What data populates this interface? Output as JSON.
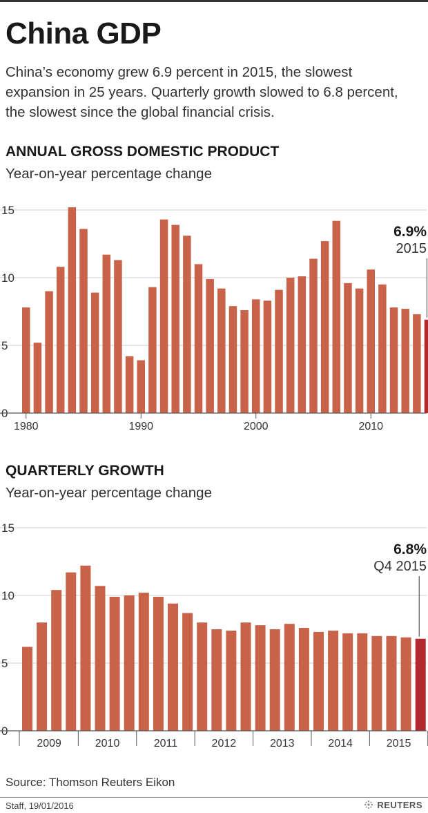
{
  "title": "China GDP",
  "intro": "China’s economy grew 6.9 percent in 2015, the slowest expansion in 25 years. Quarterly growth slowed to 6.8 percent, the slowest since the global  financial crisis.",
  "source": "Source: Thomson Reuters Eikon",
  "credit": "Staff, 19/01/2016",
  "brand": "REUTERS",
  "colors": {
    "bar": "#c8634a",
    "highlight": "#b22a2f",
    "grid": "#cfcfcf",
    "axis": "#555555"
  },
  "chart_data": [
    {
      "type": "bar",
      "title": "ANNUAL GROSS DOMESTIC PRODUCT",
      "subtitle": "Year-on-year percentage change",
      "x": [
        1980,
        1981,
        1982,
        1983,
        1984,
        1985,
        1986,
        1987,
        1988,
        1989,
        1990,
        1991,
        1992,
        1993,
        1994,
        1995,
        1996,
        1997,
        1998,
        1999,
        2000,
        2001,
        2002,
        2003,
        2004,
        2005,
        2006,
        2007,
        2008,
        2009,
        2010,
        2011,
        2012,
        2013,
        2014,
        2015
      ],
      "values": [
        7.8,
        5.2,
        9.0,
        10.8,
        15.2,
        13.6,
        8.9,
        11.7,
        11.3,
        4.2,
        3.9,
        9.3,
        14.3,
        13.9,
        13.1,
        11.0,
        9.9,
        9.2,
        7.9,
        7.6,
        8.4,
        8.3,
        9.1,
        10.0,
        10.1,
        11.4,
        12.7,
        14.2,
        9.6,
        9.2,
        10.6,
        9.5,
        7.8,
        7.7,
        7.3,
        6.9
      ],
      "ylim": [
        0,
        15
      ],
      "yticks": [
        0,
        5,
        10,
        15
      ],
      "xtick_labels": [
        "1980",
        "1990",
        "2000",
        "2010"
      ],
      "highlight_index": 35,
      "annotation": {
        "value": "6.9%",
        "label": "2015"
      },
      "grid": true
    },
    {
      "type": "bar",
      "title": "QUARTERLY GROWTH",
      "subtitle": "Year-on-year percentage change",
      "values": [
        6.2,
        8.0,
        10.4,
        11.7,
        12.2,
        10.7,
        9.9,
        10.0,
        10.2,
        9.9,
        9.4,
        8.7,
        8.0,
        7.5,
        7.4,
        8.0,
        7.8,
        7.5,
        7.9,
        7.6,
        7.3,
        7.4,
        7.2,
        7.2,
        7.0,
        7.0,
        6.9,
        6.8
      ],
      "ylim": [
        0,
        15
      ],
      "yticks": [
        0,
        5,
        10,
        15
      ],
      "year_groups": [
        "2009",
        "2010",
        "2011",
        "2012",
        "2013",
        "2014",
        "2015"
      ],
      "highlight_index": 27,
      "annotation": {
        "value": "6.8%",
        "label": "Q4 2015"
      },
      "grid": true
    }
  ]
}
